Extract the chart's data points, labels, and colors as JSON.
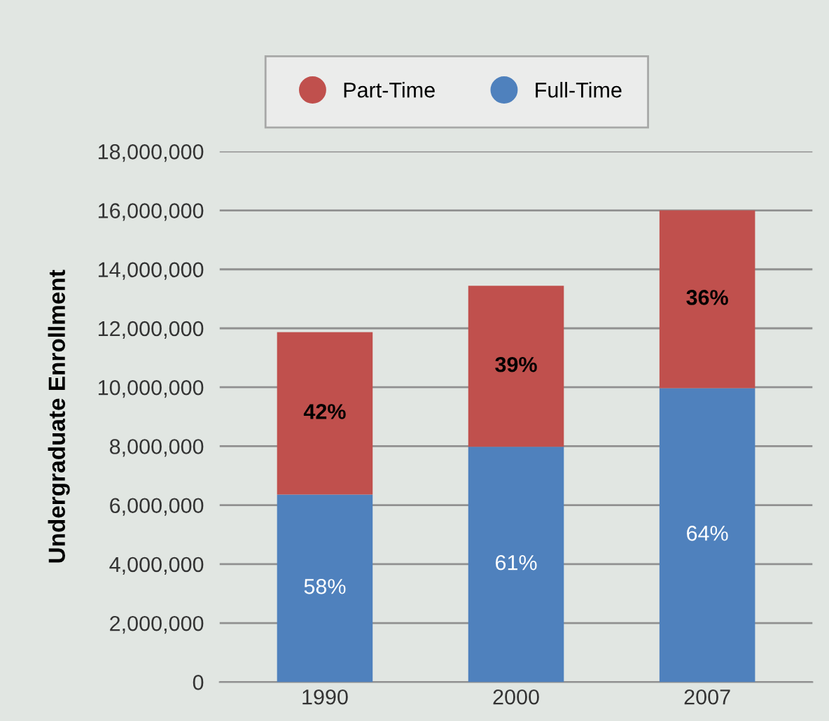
{
  "chart_data": {
    "type": "bar",
    "stacked": true,
    "ylabel": "Undergraduate Enrollment",
    "categories": [
      "1990",
      "2000",
      "2007"
    ],
    "series": [
      {
        "name": "Full-Time",
        "color": "#4f81bd",
        "values": [
          6360000,
          7980000,
          9970000
        ]
      },
      {
        "name": "Part-Time",
        "color": "#c0504d",
        "values": [
          5510000,
          5460000,
          6030000
        ]
      }
    ],
    "annotations": [
      "58%",
      "42%",
      "61%",
      "39%",
      "64%",
      "36%"
    ],
    "ylim": [
      0,
      18000000
    ],
    "yticks": [
      0,
      {
        "value": 2000000,
        "label": "2,000,000"
      },
      {
        "value": 4000000,
        "label": "4,000,000"
      },
      {
        "value": 6000000,
        "label": "6,000,000"
      },
      {
        "value": 8000000,
        "label": "8,000,000"
      },
      {
        "value": 10000000,
        "label": "10,000,000"
      },
      {
        "value": 12000000,
        "label": "12,000,000"
      },
      {
        "value": 14000000,
        "label": "14,000,000"
      },
      {
        "value": 16000000,
        "label": "16,000,000"
      },
      {
        "value": 18000000,
        "label": "18,000,000"
      }
    ],
    "grid": "y",
    "legend": "top"
  }
}
